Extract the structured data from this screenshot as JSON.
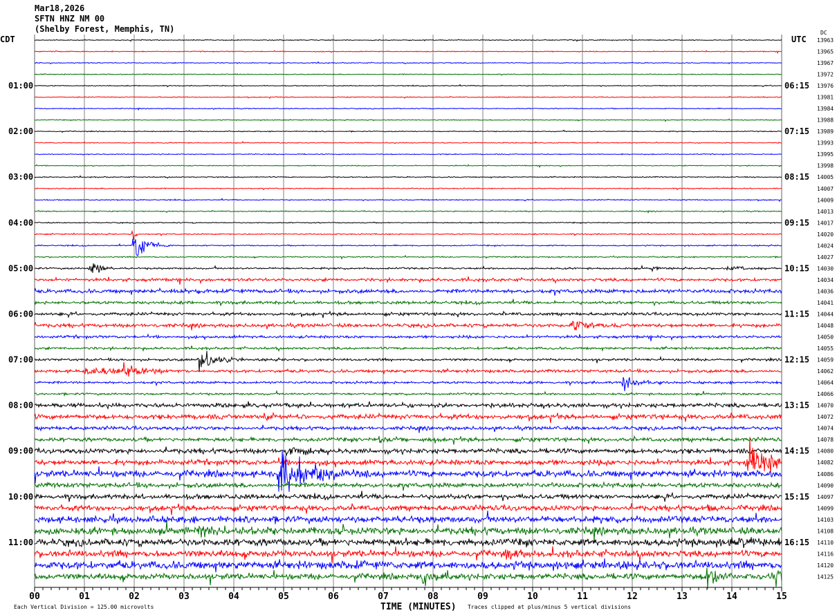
{
  "header": {
    "date": "Mar18,2026",
    "station": "SFTN HNZ NM 00",
    "location": "(Shelby Forest, Memphis, TN)"
  },
  "left_timezone": "CDT",
  "right_timezone": "UTC",
  "dc_label": "DC",
  "footer": {
    "scale": "Each Vertical Division =  125.00 microvolts",
    "xlabel": "TIME (MINUTES)",
    "clip_note": "Traces clipped at plus/minus 5 vertical divisions"
  },
  "colors": {
    "trace_cycle": [
      "#000000",
      "#ff0000",
      "#0000ff",
      "#007000"
    ],
    "grid": "#808080"
  },
  "chart_data": {
    "type": "line",
    "subtype": "helicorder",
    "xlabel": "TIME (MINUTES)",
    "xlim": [
      0,
      15
    ],
    "x_ticks": [
      "00",
      "01",
      "02",
      "03",
      "04",
      "05",
      "06",
      "07",
      "08",
      "09",
      "10",
      "11",
      "12",
      "13",
      "14",
      "15"
    ],
    "grid": true,
    "row_minutes": 15,
    "left_hour_labels": [
      "01:00",
      "02:00",
      "03:00",
      "04:00",
      "05:00",
      "06:00",
      "07:00",
      "08:00",
      "09:00",
      "10:00",
      "11:00"
    ],
    "right_hour_labels": [
      "06:15",
      "07:15",
      "08:15",
      "09:15",
      "10:15",
      "11:15",
      "12:15",
      "13:15",
      "14:15",
      "15:15",
      "16:15"
    ],
    "dc_offsets": [
      13963,
      13965,
      13967,
      13972,
      13976,
      13981,
      13984,
      13988,
      13989,
      13993,
      13995,
      13998,
      14005,
      14007,
      14009,
      14013,
      14017,
      14020,
      14024,
      14027,
      14030,
      14034,
      14036,
      14041,
      14044,
      14048,
      14050,
      14055,
      14059,
      14062,
      14064,
      14066,
      14070,
      14072,
      14074,
      14078,
      14080,
      14082,
      14086,
      14090,
      14097,
      14099,
      14103,
      14108,
      14110,
      14116,
      14120,
      14125
    ],
    "noise_level": [
      0.3,
      0.3,
      0.3,
      0.3,
      0.3,
      0.3,
      0.3,
      0.3,
      0.3,
      0.3,
      0.3,
      0.3,
      0.35,
      0.35,
      0.35,
      0.35,
      0.35,
      0.4,
      0.4,
      0.4,
      0.6,
      1.0,
      1.3,
      1.0,
      1.0,
      1.2,
      0.9,
      0.8,
      0.8,
      1.0,
      0.8,
      0.7,
      1.4,
      1.6,
      1.2,
      1.3,
      1.6,
      1.8,
      2.2,
      1.6,
      1.6,
      1.8,
      2.2,
      2.4,
      2.4,
      2.2,
      2.6,
      2.0
    ],
    "events": [
      {
        "row": 18,
        "minute": 2.0,
        "amplitude": 12,
        "duration": 0.25
      },
      {
        "row": 17,
        "minute": 1.98,
        "amplitude": 5,
        "duration": 0.05
      },
      {
        "row": 20,
        "minute": 1.1,
        "amplitude": 6,
        "duration": 0.2
      },
      {
        "row": 20,
        "minute": 12.4,
        "amplitude": 2,
        "duration": 0.1
      },
      {
        "row": 20,
        "minute": 13.9,
        "amplitude": 1.5,
        "duration": 0.6
      },
      {
        "row": 22,
        "minute": 2.3,
        "amplitude": 1.5,
        "duration": 0.8
      },
      {
        "row": 25,
        "minute": 10.8,
        "amplitude": 5,
        "duration": 0.3
      },
      {
        "row": 28,
        "minute": 3.3,
        "amplitude": 9,
        "duration": 0.3
      },
      {
        "row": 29,
        "minute": 1.0,
        "amplitude": 3,
        "duration": 0.6
      },
      {
        "row": 29,
        "minute": 1.75,
        "amplitude": 4,
        "duration": 0.5
      },
      {
        "row": 30,
        "minute": 11.8,
        "amplitude": 5,
        "duration": 0.3
      },
      {
        "row": 33,
        "minute": 4.55,
        "amplitude": 4,
        "duration": 0.3
      },
      {
        "row": 35,
        "minute": 6.9,
        "amplitude": 2,
        "duration": 0.4
      },
      {
        "row": 36,
        "minute": 5.05,
        "amplitude": 4,
        "duration": 0.3
      },
      {
        "row": 37,
        "minute": 14.3,
        "amplitude": 12,
        "duration": 0.5
      },
      {
        "row": 38,
        "minute": 4.9,
        "amplitude": 14,
        "duration": 0.6
      },
      {
        "row": 41,
        "minute": 13.5,
        "amplitude": 3,
        "duration": 0.2
      },
      {
        "row": 43,
        "minute": 3.3,
        "amplitude": 3,
        "duration": 1.0
      },
      {
        "row": 44,
        "minute": 14.0,
        "amplitude": 3,
        "duration": 0.8
      },
      {
        "row": 45,
        "minute": 9.45,
        "amplitude": 4,
        "duration": 0.3
      },
      {
        "row": 46,
        "minute": 6.25,
        "amplitude": 2.5,
        "duration": 0.3
      },
      {
        "row": 47,
        "minute": 7.8,
        "amplitude": 6,
        "duration": 0.25
      },
      {
        "row": 47,
        "minute": 13.5,
        "amplitude": 8,
        "duration": 0.3
      },
      {
        "row": 47,
        "minute": 14.8,
        "amplitude": 6,
        "duration": 0.2
      }
    ]
  }
}
